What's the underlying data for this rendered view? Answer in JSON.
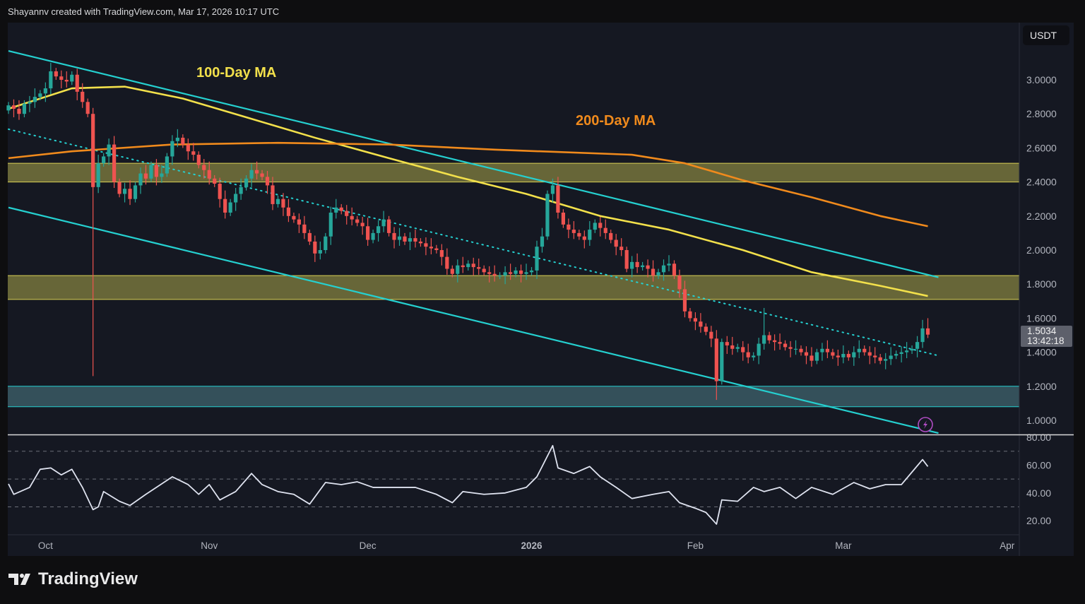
{
  "header": {
    "text": "Shayannv created with TradingView.com, Mar 17, 2026 10:17 UTC"
  },
  "price_axis": {
    "currency": "USDT"
  },
  "last_price": {
    "value": "1.5034",
    "countdown": "13:42:18"
  },
  "brand": {
    "name": "TradingView",
    "icon": "tradingview-logo-icon"
  },
  "alert_icon": "lightning-icon",
  "colors": {
    "up": "#26a69a",
    "down": "#ef5350",
    "ma100": "#f2e04b",
    "ma200": "#f08a1c",
    "channel": "#25d0d0",
    "supply_zone": "#b9b44e",
    "demand_zone": "#4e7f88",
    "rsi": "#dfe3f0",
    "background": "#151822"
  },
  "chart_data": [
    {
      "type": "candlestick",
      "first_date": "2025-09-24",
      "interval": "1D",
      "ylabel": "USDT",
      "ylim": [
        0.95,
        3.2
      ],
      "y_ticks": [
        3.0,
        2.8,
        2.6,
        2.4,
        2.2,
        2.0,
        1.8,
        1.6,
        1.4,
        1.2,
        1.0
      ],
      "x_ticks": [
        {
          "label": "Oct",
          "date": "2025-10-01"
        },
        {
          "label": "Nov",
          "date": "2025-11-01"
        },
        {
          "label": "Dec",
          "date": "2025-12-01"
        },
        {
          "label": "2026",
          "date": "2026-01-01"
        },
        {
          "label": "Feb",
          "date": "2026-02-01"
        },
        {
          "label": "Mar",
          "date": "2026-03-01"
        },
        {
          "label": "Apr",
          "date": "2026-04-01"
        }
      ],
      "first_open": 2.82,
      "close": [
        2.85,
        2.83,
        2.8,
        2.86,
        2.87,
        2.9,
        2.92,
        2.95,
        3.05,
        3.02,
        3.0,
        2.99,
        3.03,
        2.93,
        2.87,
        2.8,
        2.37,
        2.51,
        2.55,
        2.62,
        2.4,
        2.33,
        2.36,
        2.3,
        2.38,
        2.45,
        2.42,
        2.5,
        2.43,
        2.45,
        2.55,
        2.64,
        2.66,
        2.62,
        2.58,
        2.56,
        2.5,
        2.47,
        2.42,
        2.39,
        2.3,
        2.22,
        2.28,
        2.33,
        2.37,
        2.42,
        2.47,
        2.45,
        2.43,
        2.38,
        2.27,
        2.3,
        2.25,
        2.2,
        2.18,
        2.15,
        2.1,
        2.05,
        1.98,
        2.0,
        2.08,
        2.22,
        2.25,
        2.23,
        2.2,
        2.18,
        2.16,
        2.14,
        2.06,
        2.1,
        2.14,
        2.18,
        2.1,
        2.06,
        2.08,
        2.05,
        2.07,
        2.05,
        2.04,
        2.02,
        2.01,
        2.0,
        1.96,
        1.89,
        1.86,
        1.91,
        1.9,
        1.92,
        1.9,
        1.89,
        1.87,
        1.86,
        1.85,
        1.85,
        1.87,
        1.86,
        1.88,
        1.86,
        1.87,
        1.88,
        2.02,
        2.08,
        2.33,
        2.38,
        2.22,
        2.15,
        2.12,
        2.1,
        2.08,
        2.06,
        2.12,
        2.16,
        2.13,
        2.1,
        2.06,
        2.02,
        2.0,
        1.89,
        1.93,
        1.9,
        1.91,
        1.89,
        1.85,
        1.87,
        1.91,
        1.92,
        1.85,
        1.77,
        1.64,
        1.6,
        1.58,
        1.55,
        1.52,
        1.48,
        1.23,
        1.46,
        1.44,
        1.42,
        1.43,
        1.4,
        1.37,
        1.38,
        1.45,
        1.5,
        1.47,
        1.46,
        1.45,
        1.43,
        1.42,
        1.42,
        1.4,
        1.38,
        1.35,
        1.4,
        1.42,
        1.4,
        1.38,
        1.37,
        1.39,
        1.37,
        1.4,
        1.42,
        1.4,
        1.38,
        1.37,
        1.35,
        1.36,
        1.38,
        1.39,
        1.4,
        1.41,
        1.42,
        1.46,
        1.54,
        1.5034
      ],
      "wick_extremes": [
        {
          "date": "2025-10-02",
          "high": 3.1
        },
        {
          "date": "2025-10-10",
          "low": 1.26
        },
        {
          "date": "2026-01-05",
          "high": 2.42
        },
        {
          "date": "2026-02-05",
          "low": 1.12
        },
        {
          "date": "2026-02-14",
          "high": 1.66
        },
        {
          "date": "2026-03-17",
          "high": 1.6
        }
      ],
      "moving_averages": [
        {
          "name": "100-Day MA",
          "points": [
            [
              "2025-09-24",
              2.83
            ],
            [
              "2025-10-06",
              2.95
            ],
            [
              "2025-10-16",
              2.96
            ],
            [
              "2025-10-27",
              2.89
            ],
            [
              "2025-11-08",
              2.78
            ],
            [
              "2025-11-21",
              2.66
            ],
            [
              "2025-12-05",
              2.54
            ],
            [
              "2025-12-18",
              2.43
            ],
            [
              "2025-12-31",
              2.33
            ],
            [
              "2026-01-14",
              2.2
            ],
            [
              "2026-01-27",
              2.12
            ],
            [
              "2026-02-10",
              2.0
            ],
            [
              "2026-02-23",
              1.87
            ],
            [
              "2026-03-08",
              1.79
            ],
            [
              "2026-03-17",
              1.73
            ]
          ]
        },
        {
          "name": "200-Day MA",
          "points": [
            [
              "2025-09-24",
              2.54
            ],
            [
              "2025-10-06",
              2.58
            ],
            [
              "2025-10-25",
              2.62
            ],
            [
              "2025-11-14",
              2.63
            ],
            [
              "2025-12-05",
              2.62
            ],
            [
              "2025-12-25",
              2.59
            ],
            [
              "2026-01-20",
              2.56
            ],
            [
              "2026-01-30",
              2.51
            ],
            [
              "2026-02-10",
              2.41
            ],
            [
              "2026-02-23",
              2.31
            ],
            [
              "2026-03-08",
              2.2
            ],
            [
              "2026-03-17",
              2.14
            ]
          ]
        }
      ],
      "trendlines": [
        {
          "role": "channel-upper",
          "style": "solid",
          "from": [
            "2025-09-24",
            3.17
          ],
          "to": [
            "2026-03-19",
            1.84
          ]
        },
        {
          "role": "channel-middle",
          "style": "dotted",
          "from": [
            "2025-09-24",
            2.71
          ],
          "to": [
            "2026-03-19",
            1.38
          ]
        },
        {
          "role": "channel-lower",
          "style": "solid",
          "from": [
            "2025-09-24",
            2.25
          ],
          "to": [
            "2026-03-19",
            0.925
          ]
        }
      ],
      "zones": [
        {
          "role": "supply-zone-upper",
          "low": 2.4,
          "high": 2.51,
          "color": "#b9b44e"
        },
        {
          "role": "supply-zone-lower",
          "low": 1.71,
          "high": 1.85,
          "color": "#b9b44e"
        },
        {
          "role": "demand-zone",
          "low": 1.08,
          "high": 1.2,
          "color": "#4e7f88"
        }
      ]
    },
    {
      "type": "line",
      "indicator": "RSI",
      "ylim": [
        10,
        80
      ],
      "y_ticks": [
        80,
        60,
        40,
        20
      ],
      "levels": [
        70,
        50,
        30
      ],
      "points": [
        [
          "2025-09-24",
          46.5
        ],
        [
          "2025-09-25",
          39
        ],
        [
          "2025-09-28",
          44
        ],
        [
          "2025-09-30",
          57
        ],
        [
          "2025-10-02",
          58
        ],
        [
          "2025-10-04",
          53
        ],
        [
          "2025-10-06",
          57
        ],
        [
          "2025-10-08",
          44
        ],
        [
          "2025-10-10",
          28
        ],
        [
          "2025-10-11",
          30
        ],
        [
          "2025-10-12",
          41
        ],
        [
          "2025-10-15",
          34
        ],
        [
          "2025-10-17",
          31
        ],
        [
          "2025-10-20",
          39
        ],
        [
          "2025-10-22",
          44
        ],
        [
          "2025-10-25",
          51.6
        ],
        [
          "2025-10-28",
          46
        ],
        [
          "2025-10-30",
          39
        ],
        [
          "2025-11-01",
          46
        ],
        [
          "2025-11-03",
          35
        ],
        [
          "2025-11-06",
          41
        ],
        [
          "2025-11-09",
          54
        ],
        [
          "2025-11-11",
          46
        ],
        [
          "2025-11-14",
          41
        ],
        [
          "2025-11-17",
          39
        ],
        [
          "2025-11-20",
          32
        ],
        [
          "2025-11-23",
          47.5
        ],
        [
          "2025-11-26",
          46
        ],
        [
          "2025-11-29",
          48
        ],
        [
          "2025-12-02",
          44
        ],
        [
          "2025-12-06",
          44
        ],
        [
          "2025-12-10",
          44
        ],
        [
          "2025-12-14",
          39
        ],
        [
          "2025-12-17",
          33
        ],
        [
          "2025-12-19",
          41
        ],
        [
          "2025-12-23",
          39
        ],
        [
          "2025-12-27",
          40
        ],
        [
          "2025-12-31",
          44
        ],
        [
          "2026-01-02",
          51.6
        ],
        [
          "2026-01-03",
          59
        ],
        [
          "2026-01-05",
          74
        ],
        [
          "2026-01-06",
          58
        ],
        [
          "2026-01-09",
          54
        ],
        [
          "2026-01-12",
          59
        ],
        [
          "2026-01-14",
          51.6
        ],
        [
          "2026-01-17",
          44
        ],
        [
          "2026-01-20",
          36
        ],
        [
          "2026-01-24",
          39
        ],
        [
          "2026-01-27",
          41
        ],
        [
          "2026-01-29",
          33
        ],
        [
          "2026-02-01",
          29
        ],
        [
          "2026-02-03",
          26
        ],
        [
          "2026-02-05",
          17.6
        ],
        [
          "2026-02-06",
          35
        ],
        [
          "2026-02-09",
          34
        ],
        [
          "2026-02-12",
          44
        ],
        [
          "2026-02-14",
          41
        ],
        [
          "2026-02-17",
          44
        ],
        [
          "2026-02-20",
          36
        ],
        [
          "2026-02-23",
          44
        ],
        [
          "2026-02-27",
          39
        ],
        [
          "2026-03-03",
          47.5
        ],
        [
          "2026-03-06",
          43
        ],
        [
          "2026-03-09",
          46
        ],
        [
          "2026-03-12",
          46
        ],
        [
          "2026-03-14",
          55
        ],
        [
          "2026-03-16",
          64
        ],
        [
          "2026-03-17",
          59
        ]
      ]
    }
  ],
  "annotations": [
    {
      "text": "100-Day MA",
      "color": "#f2e04b"
    },
    {
      "text": "200-Day MA",
      "color": "#f08a1c"
    }
  ]
}
